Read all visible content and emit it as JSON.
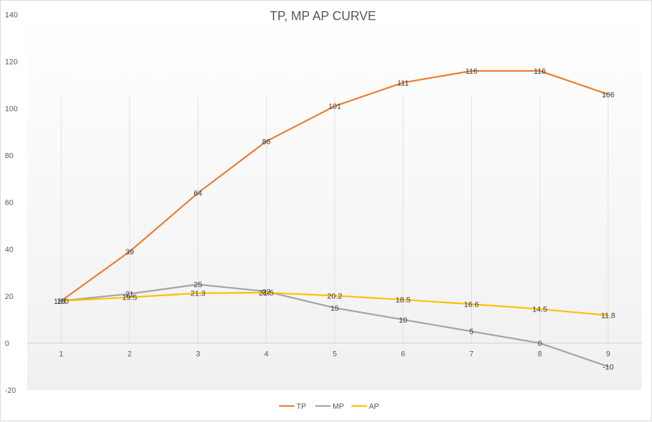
{
  "chart_data": {
    "type": "line",
    "title": "TP, MP AP CURVE",
    "xlabel": "",
    "ylabel": "",
    "categories": [
      "1",
      "2",
      "3",
      "4",
      "5",
      "6",
      "7",
      "8",
      "9"
    ],
    "ylim": [
      -20,
      140
    ],
    "yticks": [
      -20,
      0,
      20,
      40,
      60,
      80,
      100,
      120,
      140
    ],
    "ytick_labels": [
      "-20",
      "0",
      "20",
      "40",
      "60",
      "80",
      "100",
      "120",
      "140"
    ],
    "grid": "vertical",
    "legend_position": "bottom",
    "series": [
      {
        "name": "TP",
        "color": "#ED7D31",
        "values": [
          18,
          39,
          64,
          86,
          101,
          111,
          116,
          116,
          106
        ],
        "labels": [
          "18",
          "39",
          "64",
          "86",
          "101",
          "111",
          "116",
          "116",
          "106"
        ]
      },
      {
        "name": "MP",
        "color": "#A5A5A5",
        "values": [
          18,
          21,
          25,
          22,
          15,
          10,
          5,
          0,
          -10
        ],
        "labels": [
          "18",
          "21",
          "25",
          "22",
          "15",
          "10",
          "5",
          "0",
          "-10"
        ]
      },
      {
        "name": "AP",
        "color": "#FFC000",
        "values": [
          18,
          19.5,
          21.3,
          21.5,
          20.2,
          18.5,
          16.6,
          14.5,
          11.8
        ],
        "labels": [
          "18.0",
          "19.5",
          "21.3",
          "21.5",
          "20.2",
          "18.5",
          "16.6",
          "14.5",
          "11.8"
        ]
      }
    ]
  }
}
